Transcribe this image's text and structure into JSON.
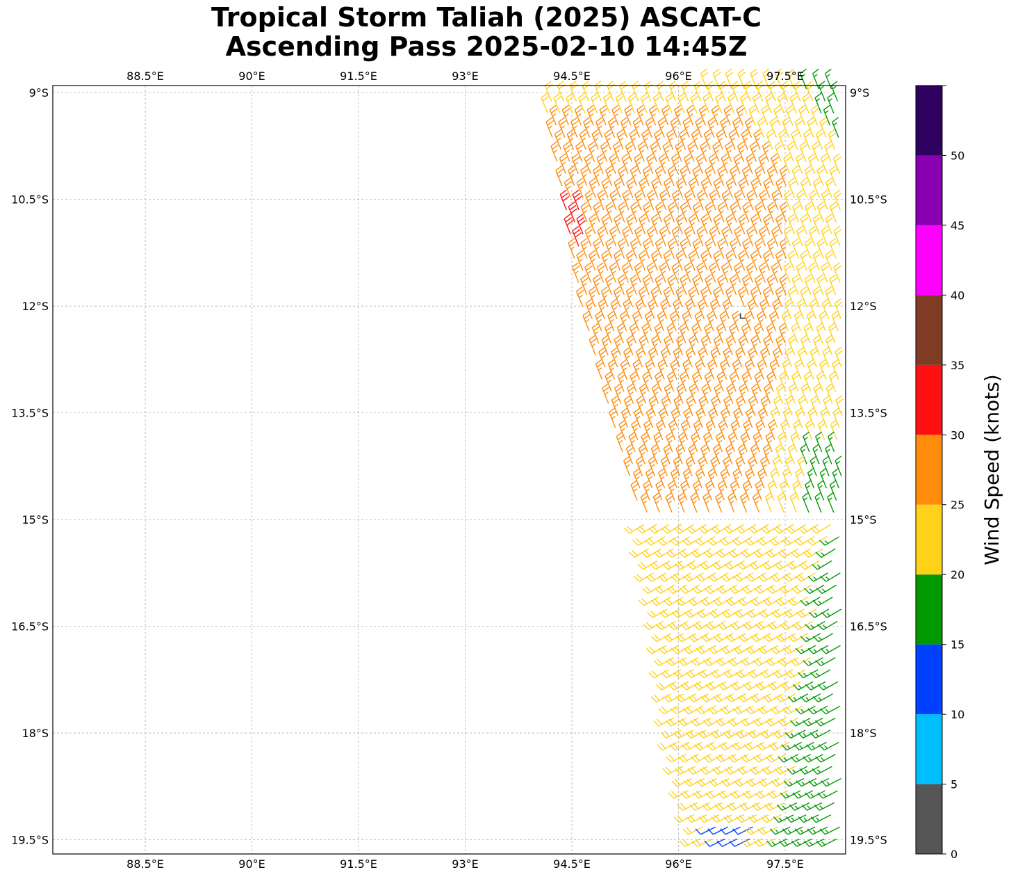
{
  "title": {
    "line1": "Tropical Storm Taliah (2025) ASCAT-C",
    "line2": "Ascending Pass 2025-02-10 14:45Z"
  },
  "map": {
    "lon_range": [
      87.2,
      98.35
    ],
    "lat_range": [
      -19.7,
      -8.9
    ],
    "lon_ticks": [
      88.5,
      90,
      91.5,
      93,
      94.5,
      96,
      97.5
    ],
    "lon_tick_labels": [
      "88.5°E",
      "90°E",
      "91.5°E",
      "93°E",
      "94.5°E",
      "96°E",
      "97.5°E"
    ],
    "lat_ticks": [
      -9,
      -10.5,
      -12,
      -13.5,
      -15,
      -16.5,
      -18,
      -19.5
    ],
    "lat_tick_labels": [
      "9°S",
      "10.5°S",
      "12°S",
      "13.5°S",
      "15°S",
      "16.5°S",
      "18°S",
      "19.5°S"
    ],
    "gridlines": true,
    "gridline_style": "dashed"
  },
  "colorbar": {
    "label": "Wind Speed (knots)",
    "boundaries": [
      0,
      5,
      10,
      15,
      20,
      25,
      30,
      35,
      40,
      45,
      50,
      55
    ],
    "tick_labels": [
      "0",
      "5",
      "10",
      "15",
      "20",
      "25",
      "30",
      "35",
      "40",
      "45",
      "50"
    ],
    "colors": [
      "#555555",
      "#00bfff",
      "#0040ff",
      "#009900",
      "#ffd21a",
      "#ff8c0a",
      "#ff1010",
      "#7f3b24",
      "#ff00ff",
      "#8800b0",
      "#2e0060"
    ]
  },
  "swath": {
    "description_type": "wind barbs",
    "rows": [
      {
        "lat": -9.0,
        "lon_start": 94.1
      },
      {
        "lat": -10.5,
        "lon_start": 94.4
      },
      {
        "lat": -12.0,
        "lon_start": 94.65
      },
      {
        "lat": -13.5,
        "lon_start": 95.05
      },
      {
        "lat": -15.0,
        "lon_start": 95.5
      },
      {
        "lat": -16.5,
        "lon_start": 95.8
      },
      {
        "lat": -18.0,
        "lon_start": 95.95
      },
      {
        "lat": -19.5,
        "lon_start": 96.3
      },
      {
        "lat": -19.7,
        "lon_start": 96.4
      }
    ],
    "center_marker": {
      "lon": 96.9,
      "lat": -12.15
    }
  }
}
